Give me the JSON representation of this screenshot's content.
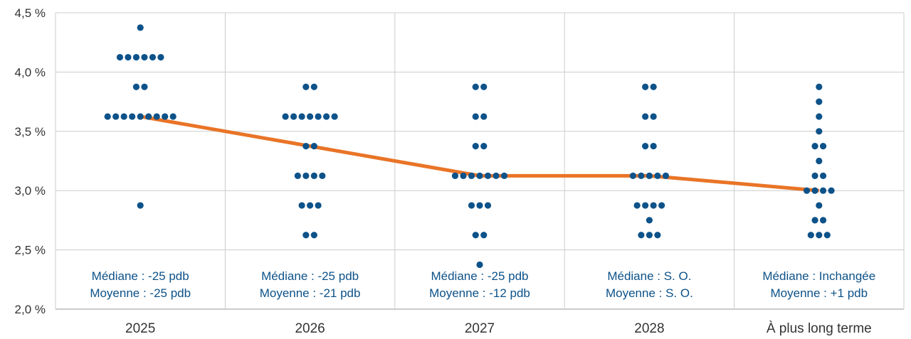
{
  "chart_data": {
    "type": "scatter",
    "categories": [
      "2025",
      "2026",
      "2027",
      "2028",
      "À plus long terme"
    ],
    "y_ticks": [
      "2,0 %",
      "2,5 %",
      "3,0 %",
      "3,5 %",
      "4,0 %",
      "4,5 %"
    ],
    "ylim": [
      2.0,
      4.5
    ],
    "grid": true,
    "colors": {
      "dots": "#0d5289",
      "median_line": "#e97427",
      "grid": "#cccccc",
      "note_text": "#0d5289"
    },
    "dots": [
      [
        {
          "y": 4.375,
          "n": 1
        },
        {
          "y": 4.125,
          "n": 6
        },
        {
          "y": 3.875,
          "n": 2
        },
        {
          "y": 3.625,
          "n": 9
        },
        {
          "y": 2.875,
          "n": 1
        }
      ],
      [
        {
          "y": 3.875,
          "n": 2
        },
        {
          "y": 3.625,
          "n": 7
        },
        {
          "y": 3.375,
          "n": 2
        },
        {
          "y": 3.125,
          "n": 4
        },
        {
          "y": 2.875,
          "n": 3
        },
        {
          "y": 2.625,
          "n": 2
        }
      ],
      [
        {
          "y": 3.875,
          "n": 2
        },
        {
          "y": 3.625,
          "n": 2
        },
        {
          "y": 3.375,
          "n": 2
        },
        {
          "y": 3.125,
          "n": 7
        },
        {
          "y": 2.875,
          "n": 3
        },
        {
          "y": 2.625,
          "n": 2
        },
        {
          "y": 2.375,
          "n": 1
        }
      ],
      [
        {
          "y": 3.875,
          "n": 2
        },
        {
          "y": 3.625,
          "n": 2
        },
        {
          "y": 3.375,
          "n": 2
        },
        {
          "y": 3.125,
          "n": 5
        },
        {
          "y": 2.875,
          "n": 4
        },
        {
          "y": 2.75,
          "n": 1
        },
        {
          "y": 2.625,
          "n": 3
        }
      ],
      [
        {
          "y": 3.875,
          "n": 1
        },
        {
          "y": 3.75,
          "n": 1
        },
        {
          "y": 3.625,
          "n": 1
        },
        {
          "y": 3.5,
          "n": 1
        },
        {
          "y": 3.375,
          "n": 2
        },
        {
          "y": 3.25,
          "n": 1
        },
        {
          "y": 3.125,
          "n": 2
        },
        {
          "y": 3.0,
          "n": 4
        },
        {
          "y": 2.875,
          "n": 1
        },
        {
          "y": 2.75,
          "n": 2
        },
        {
          "y": 2.625,
          "n": 3
        }
      ]
    ],
    "median": [
      3.625,
      3.375,
      3.125,
      3.125,
      3.0
    ],
    "annotations": [
      {
        "median": "Médiane : -25 pdb",
        "mean": "Moyenne : -25 pdb"
      },
      {
        "median": "Médiane : -25 pdb",
        "mean": "Moyenne : -21 pdb"
      },
      {
        "median": "Médiane : -25 pdb",
        "mean": "Moyenne : -12 pdb"
      },
      {
        "median": "Médiane : S. O.",
        "mean": "Moyenne : S. O."
      },
      {
        "median": "Médiane : Inchangée",
        "mean": "Moyenne : +1 pdb"
      }
    ]
  }
}
